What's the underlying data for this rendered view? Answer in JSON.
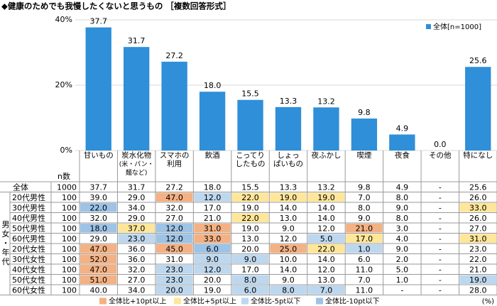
{
  "chart_data": {
    "type": "bar",
    "title": "◆健康のためでも我慢したくないと思うもの ［複数回答形式］",
    "categories": [
      "甘いもの",
      "炭水化物\n(米・パン・\n麺など)",
      "スマホの\n利用",
      "飲酒",
      "こってり\nしたもの",
      "しょっ\nぱいもの",
      "夜ふかし",
      "喫煙",
      "夜食",
      "その他",
      "特になし"
    ],
    "series": [
      {
        "name": "全体[n=1000]",
        "color": "#2f8fd8",
        "values": [
          37.7,
          31.7,
          27.2,
          18.0,
          15.5,
          13.3,
          13.2,
          9.8,
          4.9,
          0.0,
          25.6
        ],
        "value_labels": [
          "37.7",
          "31.7",
          "27.2",
          "18.0",
          "15.5",
          "13.3",
          "13.2",
          "9.8",
          "4.9",
          "0.0",
          "25.6"
        ]
      }
    ],
    "ylim": [
      0,
      40
    ],
    "yticks": [
      {
        "value": 0,
        "label": "0%"
      },
      {
        "value": 20,
        "label": "20%"
      },
      {
        "value": 40,
        "label": "40%"
      }
    ],
    "legend": "top-right"
  },
  "table": {
    "n_header": "n数",
    "group_label": "男女・年代",
    "rows": [
      {
        "label": "全体",
        "n": "1000",
        "values": [
          "37.7",
          "31.7",
          "27.2",
          "18.0",
          "15.5",
          "13.3",
          "13.2",
          "9.8",
          "4.9",
          "-",
          "25.6"
        ],
        "highlight": [
          null,
          null,
          null,
          null,
          null,
          null,
          null,
          null,
          null,
          null,
          null
        ]
      },
      {
        "label": "20代男性",
        "n": "100",
        "values": [
          "39.0",
          "29.0",
          "47.0",
          "12.0",
          "22.0",
          "19.0",
          "19.0",
          "7.0",
          "8.0",
          "-",
          "26.0"
        ],
        "highlight": [
          null,
          null,
          0,
          2,
          1,
          1,
          1,
          null,
          null,
          null,
          null
        ]
      },
      {
        "label": "30代男性",
        "n": "100",
        "values": [
          "22.0",
          "34.0",
          "32.0",
          "17.0",
          "19.0",
          "14.0",
          "14.0",
          "8.0",
          "9.0",
          "-",
          "33.0"
        ],
        "highlight": [
          3,
          null,
          null,
          null,
          null,
          null,
          null,
          null,
          null,
          null,
          1
        ]
      },
      {
        "label": "40代男性",
        "n": "100",
        "values": [
          "32.0",
          "29.0",
          "27.0",
          "21.0",
          "22.0",
          "13.0",
          "14.0",
          "9.0",
          "8.0",
          "-",
          "26.0"
        ],
        "highlight": [
          null,
          null,
          null,
          null,
          1,
          null,
          null,
          null,
          null,
          null,
          null
        ]
      },
      {
        "label": "50代男性",
        "n": "100",
        "values": [
          "18.0",
          "37.0",
          "12.0",
          "31.0",
          "19.0",
          "9.0",
          "12.0",
          "21.0",
          "3.0",
          "-",
          "27.0"
        ],
        "highlight": [
          3,
          1,
          3,
          0,
          null,
          null,
          null,
          0,
          null,
          null,
          null
        ]
      },
      {
        "label": "60代男性",
        "n": "100",
        "values": [
          "29.0",
          "23.0",
          "12.0",
          "33.0",
          "13.0",
          "12.0",
          "5.0",
          "17.0",
          "4.0",
          "-",
          "31.0"
        ],
        "highlight": [
          null,
          2,
          3,
          0,
          null,
          null,
          2,
          1,
          null,
          null,
          1
        ]
      },
      {
        "label": "20代女性",
        "n": "100",
        "values": [
          "47.0",
          "36.0",
          "45.0",
          "6.0",
          "20.0",
          "25.0",
          "22.0",
          "1.0",
          "9.0",
          "-",
          "23.0"
        ],
        "highlight": [
          0,
          null,
          0,
          3,
          null,
          0,
          1,
          2,
          null,
          null,
          null
        ]
      },
      {
        "label": "30代女性",
        "n": "100",
        "values": [
          "52.0",
          "36.0",
          "31.0",
          "9.0",
          "9.0",
          "10.0",
          "14.0",
          "6.0",
          "2.0",
          "-",
          "22.0"
        ],
        "highlight": [
          0,
          null,
          null,
          2,
          2,
          null,
          null,
          null,
          null,
          null,
          null
        ]
      },
      {
        "label": "40代女性",
        "n": "100",
        "values": [
          "47.0",
          "32.0",
          "23.0",
          "12.0",
          "17.0",
          "14.0",
          "12.0",
          "11.0",
          "5.0",
          "-",
          "21.0"
        ],
        "highlight": [
          0,
          null,
          2,
          2,
          null,
          null,
          null,
          null,
          null,
          null,
          null
        ]
      },
      {
        "label": "50代女性",
        "n": "100",
        "values": [
          "51.0",
          "27.0",
          "23.0",
          "20.0",
          "8.0",
          "9.0",
          "13.0",
          "7.0",
          "1.0",
          "-",
          "19.0"
        ],
        "highlight": [
          0,
          null,
          2,
          null,
          2,
          null,
          null,
          null,
          null,
          null,
          2
        ]
      },
      {
        "label": "60代女性",
        "n": "100",
        "values": [
          "40.0",
          "34.0",
          "20.0",
          "19.0",
          "6.0",
          "8.0",
          "7.0",
          "11.0",
          "-",
          "-",
          "28.0"
        ],
        "highlight": [
          null,
          null,
          2,
          null,
          2,
          2,
          2,
          null,
          null,
          null,
          null
        ]
      }
    ],
    "highlight_legend": [
      {
        "label": "全体比+10pt以上",
        "color": "#f4b183"
      },
      {
        "label": "全体比+5pt以上",
        "color": "#ffe699"
      },
      {
        "label": "全体比-5pt以下",
        "color": "#bdd7ee"
      },
      {
        "label": "全体比-10pt以下",
        "color": "#9dc3e6"
      }
    ],
    "unit_note": "(%)"
  }
}
